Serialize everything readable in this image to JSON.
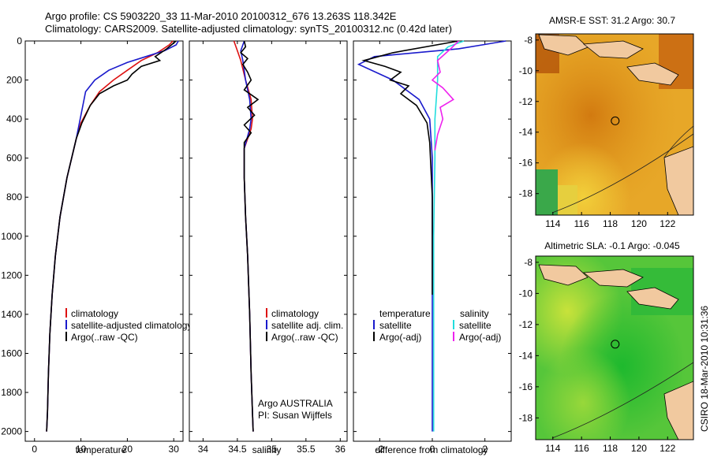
{
  "header": {
    "title_line1": "Argo profile: CS 5903220_33 11-Mar-2010 20100312_676 13.263S 118.342E",
    "title_line2": "Climatology: CARS2009. Satellite-adjusted climatology: synTS_20100312.nc (0.42d later)"
  },
  "side_label": "CSIRO 18-Mar-2010 10:31:36",
  "colors": {
    "climatology": "#dd1111",
    "satellite": "#1a1acc",
    "argo": "#000000",
    "sal_satellite": "#22dddd",
    "sal_argo": "#ee22ee"
  },
  "chart_data": [
    {
      "type": "line",
      "id": "temperature",
      "xlabel": "temperature",
      "ylabel": "",
      "xlim": [
        -2,
        32
      ],
      "ylim": [
        2050,
        0
      ],
      "xticks": [
        "0",
        "10",
        "20",
        "30"
      ],
      "xtick_values": [
        0,
        10,
        20,
        30
      ],
      "yticks": [
        "0",
        "200",
        "400",
        "600",
        "800",
        "1000",
        "1200",
        "1400",
        "1600",
        "1800",
        "2000"
      ],
      "ytick_values": [
        0,
        200,
        400,
        600,
        800,
        1000,
        1200,
        1400,
        1600,
        1800,
        2000
      ],
      "legend": [
        "climatology",
        "satellite-adjusted climatology",
        "Argo(..raw -QC)"
      ],
      "series": [
        {
          "name": "climatology",
          "color": "#dd1111",
          "x": [
            29.8,
            29.0,
            26.5,
            23.0,
            20.0,
            17.0,
            14.0,
            12.0,
            10.0,
            9.0,
            7.0,
            5.5,
            4.5,
            3.8,
            3.3,
            3.0,
            2.8,
            2.6
          ],
          "y": [
            0,
            20,
            60,
            100,
            150,
            200,
            260,
            330,
            420,
            500,
            700,
            900,
            1100,
            1300,
            1500,
            1700,
            1900,
            2000
          ]
        },
        {
          "name": "satellite-adjusted climatology",
          "color": "#1a1acc",
          "x": [
            31.0,
            30.5,
            28.0,
            24.0,
            20.0,
            16.0,
            13.0,
            11.0,
            10.0,
            9.0,
            7.0,
            5.5,
            4.5,
            3.8,
            3.3,
            3.0,
            2.8,
            2.6
          ],
          "y": [
            0,
            20,
            50,
            80,
            110,
            150,
            200,
            260,
            380,
            500,
            700,
            900,
            1100,
            1300,
            1500,
            1700,
            1900,
            2000
          ]
        },
        {
          "name": "Argo(..raw -QC)",
          "color": "#000000",
          "x": [
            30.5,
            28.5,
            26.0,
            27.0,
            23.0,
            21.0,
            20.0,
            17.0,
            14.0,
            12.0,
            10.2,
            9.0,
            7.0,
            5.5,
            4.5,
            3.8,
            3.3,
            3.0,
            2.8,
            2.6
          ],
          "y": [
            0,
            40,
            80,
            100,
            130,
            170,
            200,
            230,
            270,
            330,
            420,
            500,
            700,
            900,
            1100,
            1300,
            1500,
            1700,
            1900,
            2000
          ]
        }
      ]
    },
    {
      "type": "line",
      "id": "salinity",
      "xlabel": "salinity",
      "ylabel": "",
      "xlim": [
        33.8,
        36.1
      ],
      "ylim": [
        2050,
        0
      ],
      "xticks": [
        "34",
        "34.5",
        "35",
        "35.5",
        "36"
      ],
      "xtick_values": [
        34,
        34.5,
        35,
        35.5,
        36
      ],
      "legend": [
        "climatology",
        "satellite adj. clim.",
        "Argo(..raw -QC)"
      ],
      "annotations": [
        "Argo AUSTRALIA",
        "PI: Susan Wijffels"
      ],
      "series": [
        {
          "name": "climatology",
          "color": "#dd1111",
          "x": [
            34.45,
            34.5,
            34.55,
            34.62,
            34.7,
            34.72,
            34.7,
            34.6,
            34.6,
            34.62,
            34.65,
            34.68,
            34.7,
            34.72,
            34.73
          ],
          "y": [
            0,
            50,
            100,
            200,
            300,
            400,
            450,
            550,
            700,
            900,
            1100,
            1400,
            1700,
            1900,
            2000
          ]
        },
        {
          "name": "satellite adj. clim.",
          "color": "#1a1acc",
          "x": [
            34.6,
            34.55,
            34.58,
            34.62,
            34.68,
            34.7,
            34.68,
            34.6,
            34.6,
            34.62,
            34.65,
            34.68,
            34.7,
            34.72,
            34.73
          ],
          "y": [
            0,
            50,
            100,
            200,
            300,
            400,
            450,
            550,
            700,
            900,
            1100,
            1400,
            1700,
            1900,
            2000
          ]
        },
        {
          "name": "Argo(..raw -QC)",
          "color": "#000000",
          "x": [
            34.6,
            34.62,
            34.55,
            34.65,
            34.58,
            34.65,
            34.7,
            34.6,
            34.8,
            34.65,
            34.75,
            34.6,
            34.7,
            34.6,
            34.6,
            34.62,
            34.65,
            34.68,
            34.7,
            34.72,
            34.73
          ],
          "y": [
            0,
            30,
            60,
            90,
            120,
            160,
            200,
            250,
            300,
            340,
            380,
            430,
            470,
            520,
            700,
            900,
            1100,
            1400,
            1700,
            1900,
            2000
          ]
        }
      ]
    },
    {
      "type": "line",
      "id": "difference",
      "xlabel": "difference from climatology",
      "ylabel": "",
      "xlim": [
        -3,
        3
      ],
      "ylim": [
        2050,
        0
      ],
      "xticks": [
        "-2",
        "0",
        "2"
      ],
      "xtick_values": [
        -2,
        0,
        2
      ],
      "legend_left_header": "temperature",
      "legend_left": [
        "satellite",
        "Argo(-adj)"
      ],
      "legend_right_header": "salinity",
      "legend_right": [
        "satellite",
        "Argo(-adj)"
      ],
      "series": [
        {
          "name": "temperature satellite",
          "color": "#1a1acc",
          "x": [
            2.8,
            1.0,
            -2.2,
            -2.8,
            -1.5,
            -0.5,
            -0.1,
            0.0,
            0.0,
            0.0
          ],
          "y": [
            0,
            40,
            80,
            120,
            200,
            300,
            400,
            600,
            1000,
            2000
          ]
        },
        {
          "name": "temperature Argo(-adj)",
          "color": "#000000",
          "x": [
            1.0,
            -1.5,
            -2.6,
            -1.8,
            -1.2,
            -1.6,
            -0.9,
            -1.2,
            -0.6,
            -0.2,
            -0.1,
            0.0,
            0.0
          ],
          "y": [
            0,
            60,
            100,
            130,
            160,
            200,
            230,
            270,
            330,
            420,
            520,
            800,
            1300
          ]
        },
        {
          "name": "salinity satellite",
          "color": "#22dddd",
          "x": [
            1.2,
            0.6,
            0.2,
            0.2,
            0.1,
            0.1,
            0.05,
            0.05,
            0.05
          ],
          "y": [
            0,
            30,
            80,
            200,
            400,
            600,
            1000,
            1500,
            2000
          ]
        },
        {
          "name": "salinity Argo(-adj)",
          "color": "#ee22ee",
          "x": [
            1.0,
            0.7,
            0.2,
            0.3,
            0.0,
            0.4,
            0.8,
            0.3,
            0.4,
            0.2,
            0.1
          ],
          "y": [
            0,
            40,
            100,
            160,
            200,
            240,
            300,
            340,
            400,
            480,
            560
          ]
        }
      ]
    },
    {
      "type": "heatmap",
      "id": "sst-map",
      "title": "AMSR-E SST: 31.2  Argo: 30.7",
      "xticks": [
        "114",
        "116",
        "118",
        "120",
        "122"
      ],
      "xtick_values": [
        114,
        116,
        118,
        120,
        122
      ],
      "yticks": [
        "-8",
        "-10",
        "-12",
        "-14",
        "-16",
        "-18"
      ],
      "ytick_values": [
        -8,
        -10,
        -12,
        -14,
        -16,
        -18
      ],
      "xlim": [
        112.8,
        123.8
      ],
      "ylim": [
        -19.4,
        -7.6
      ],
      "marker": {
        "lon": 118.342,
        "lat": -13.263
      }
    },
    {
      "type": "heatmap",
      "id": "sla-map",
      "title": "Altimetric SLA: -0.1  Argo: -0.045",
      "xticks": [
        "114",
        "116",
        "118",
        "120",
        "122"
      ],
      "xtick_values": [
        114,
        116,
        118,
        120,
        122
      ],
      "yticks": [
        "-8",
        "-10",
        "-12",
        "-14",
        "-16",
        "-18"
      ],
      "ytick_values": [
        -8,
        -10,
        -12,
        -14,
        -16,
        -18
      ],
      "xlim": [
        112.8,
        123.8
      ],
      "ylim": [
        -19.4,
        -7.6
      ],
      "marker": {
        "lon": 118.342,
        "lat": -13.263
      }
    }
  ]
}
